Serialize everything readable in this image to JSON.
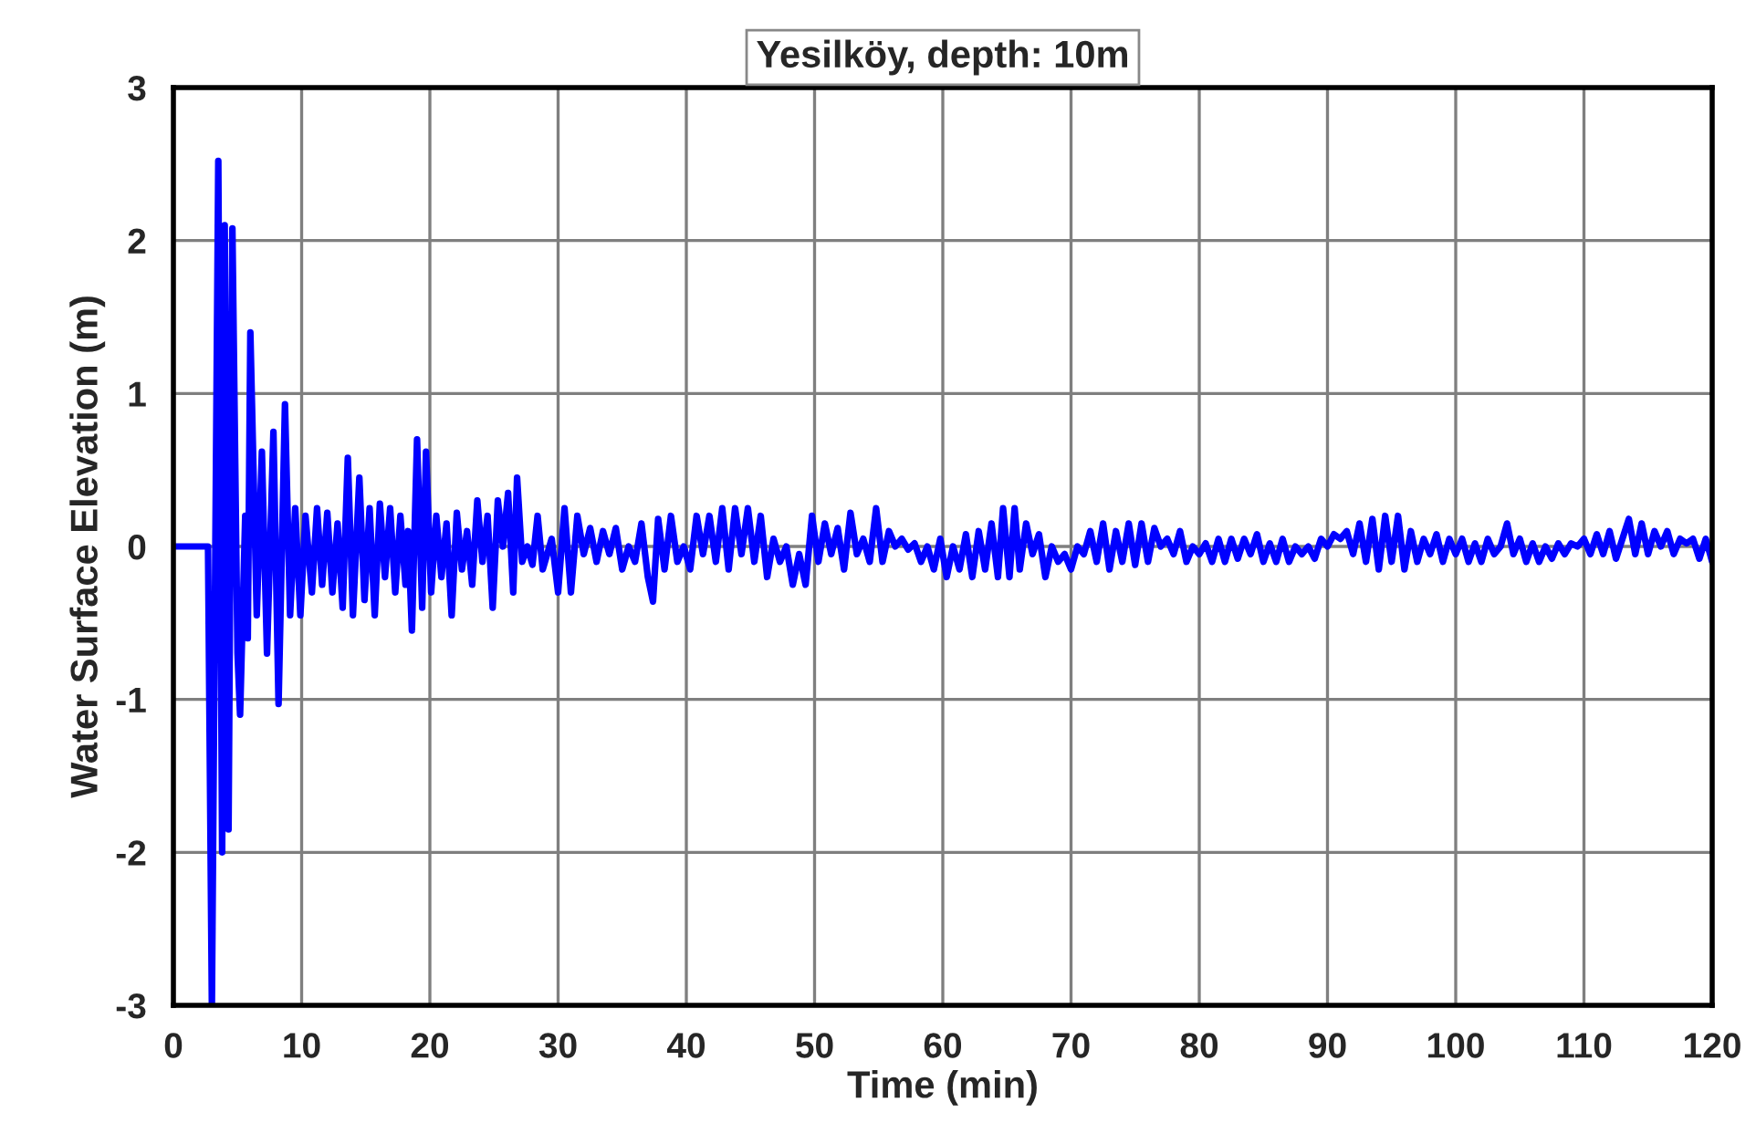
{
  "chart_data": {
    "type": "line",
    "title": "Yesilköy, depth: 10m",
    "xlabel": "Time (min)",
    "ylabel": "Water Surface Elevation (m)",
    "xlim": [
      0,
      120
    ],
    "xticks": [
      0,
      10,
      20,
      30,
      40,
      50,
      60,
      70,
      80,
      90,
      100,
      110,
      120
    ],
    "ylim": [
      -3,
      3
    ],
    "yticks": [
      -3,
      -2,
      -1,
      0,
      1,
      2,
      3
    ],
    "grid": true,
    "marker": "none",
    "line_style": "solid",
    "series": [
      {
        "color": "#0000ff",
        "x": [
          0,
          2.7,
          3.0,
          3.5,
          3.8,
          4.0,
          4.3,
          4.6,
          5.0,
          5.2,
          5.6,
          5.8,
          6.0,
          6.5,
          6.9,
          7.3,
          7.8,
          8.2,
          8.7,
          9.1,
          9.5,
          9.9,
          10.3,
          10.8,
          11.2,
          11.6,
          12.0,
          12.4,
          12.8,
          13.2,
          13.6,
          14.0,
          14.5,
          14.9,
          15.3,
          15.7,
          16.1,
          16.5,
          16.9,
          17.3,
          17.7,
          18.1,
          18.3,
          18.6,
          19.0,
          19.4,
          19.7,
          20.1,
          20.5,
          20.9,
          21.3,
          21.7,
          22.1,
          22.5,
          22.9,
          23.3,
          23.7,
          24.1,
          24.5,
          24.9,
          25.3,
          25.7,
          26.1,
          26.5,
          26.8,
          27.2,
          27.6,
          28.0,
          28.4,
          28.8,
          29.5,
          30.0,
          30.5,
          31.0,
          31.5,
          32.0,
          32.5,
          33.0,
          33.5,
          34.0,
          34.5,
          35.0,
          35.5,
          36.0,
          36.5,
          37.0,
          37.4,
          37.8,
          38.3,
          38.8,
          39.3,
          39.8,
          40.3,
          40.8,
          41.3,
          41.8,
          42.3,
          42.8,
          43.3,
          43.8,
          44.3,
          44.8,
          45.3,
          45.8,
          46.3,
          46.8,
          47.3,
          47.8,
          48.3,
          48.8,
          49.3,
          49.8,
          50.3,
          50.8,
          51.3,
          51.8,
          52.3,
          52.8,
          53.3,
          53.8,
          54.3,
          54.8,
          55.3,
          55.8,
          56.3,
          56.8,
          57.3,
          57.8,
          58.3,
          58.8,
          59.3,
          59.8,
          60.3,
          60.8,
          61.3,
          61.8,
          62.3,
          62.8,
          63.3,
          63.8,
          64.3,
          64.7,
          65.2,
          65.6,
          66.0,
          66.5,
          67.0,
          67.5,
          68.0,
          68.5,
          69.0,
          69.5,
          70.0,
          70.5,
          71.0,
          71.5,
          72.0,
          72.5,
          73.0,
          73.5,
          74.0,
          74.5,
          75.0,
          75.5,
          76.0,
          76.5,
          77.0,
          77.5,
          78.0,
          78.5,
          79.0,
          79.5,
          80.0,
          80.5,
          81.0,
          81.5,
          82.0,
          82.5,
          83.0,
          83.5,
          84.0,
          84.5,
          85.0,
          85.5,
          86.0,
          86.5,
          87.0,
          87.5,
          88.0,
          88.5,
          89.0,
          89.5,
          90.0,
          90.5,
          91.0,
          91.5,
          92.0,
          92.5,
          93.0,
          93.5,
          94.0,
          94.5,
          95.0,
          95.5,
          96.0,
          96.5,
          97.0,
          97.5,
          98.0,
          98.5,
          99.0,
          99.5,
          100.0,
          100.5,
          101.0,
          101.5,
          102.0,
          102.5,
          103.0,
          103.5,
          104.0,
          104.5,
          105.0,
          105.5,
          106.0,
          106.5,
          107.0,
          107.5,
          108.0,
          108.5,
          109.0,
          109.5,
          110.0,
          110.5,
          111.0,
          111.5,
          112.0,
          112.5,
          113.0,
          113.5,
          114.0,
          114.5,
          115.0,
          115.5,
          116.0,
          116.5,
          117.0,
          117.5,
          118.0,
          118.5,
          119.0,
          119.5,
          120.0
        ],
        "values": [
          0,
          0,
          -3.0,
          2.52,
          -2.0,
          2.1,
          -1.85,
          2.08,
          -0.7,
          -1.1,
          0.2,
          -0.6,
          1.4,
          -0.45,
          0.62,
          -0.7,
          0.75,
          -1.03,
          0.93,
          -0.45,
          0.25,
          -0.45,
          0.2,
          -0.3,
          0.25,
          -0.25,
          0.22,
          -0.3,
          0.15,
          -0.4,
          0.58,
          -0.45,
          0.45,
          -0.35,
          0.25,
          -0.45,
          0.28,
          -0.2,
          0.25,
          -0.3,
          0.2,
          -0.25,
          0.1,
          -0.55,
          0.7,
          -0.4,
          0.62,
          -0.3,
          0.2,
          -0.2,
          0.15,
          -0.45,
          0.22,
          -0.15,
          0.1,
          -0.25,
          0.3,
          -0.1,
          0.2,
          -0.4,
          0.3,
          0.0,
          0.35,
          -0.3,
          0.45,
          -0.1,
          0.0,
          -0.12,
          0.2,
          -0.15,
          0.05,
          -0.3,
          0.25,
          -0.3,
          0.2,
          -0.05,
          0.12,
          -0.1,
          0.1,
          -0.05,
          0.12,
          -0.15,
          0.0,
          -0.1,
          0.15,
          -0.2,
          -0.36,
          0.18,
          -0.15,
          0.2,
          -0.1,
          0.0,
          -0.15,
          0.2,
          -0.05,
          0.2,
          -0.1,
          0.25,
          -0.15,
          0.25,
          -0.05,
          0.25,
          -0.1,
          0.2,
          -0.2,
          0.05,
          -0.1,
          0.0,
          -0.25,
          -0.05,
          -0.25,
          0.2,
          -0.1,
          0.15,
          -0.05,
          0.12,
          -0.15,
          0.22,
          -0.05,
          0.05,
          -0.1,
          0.25,
          -0.1,
          0.1,
          0.0,
          0.05,
          -0.02,
          0.02,
          -0.1,
          0.0,
          -0.15,
          0.05,
          -0.2,
          0.0,
          -0.15,
          0.08,
          -0.2,
          0.1,
          -0.15,
          0.15,
          -0.2,
          0.25,
          -0.2,
          0.25,
          -0.15,
          0.15,
          -0.05,
          0.08,
          -0.2,
          0.0,
          -0.1,
          -0.05,
          -0.15,
          0.0,
          -0.05,
          0.1,
          -0.1,
          0.15,
          -0.15,
          0.1,
          -0.1,
          0.15,
          -0.12,
          0.15,
          -0.1,
          0.12,
          0.0,
          0.05,
          -0.05,
          0.1,
          -0.1,
          0.0,
          -0.05,
          0.02,
          -0.1,
          0.05,
          -0.1,
          0.05,
          -0.08,
          0.05,
          -0.05,
          0.08,
          -0.1,
          0.02,
          -0.1,
          0.05,
          -0.1,
          0.0,
          -0.05,
          0.0,
          -0.08,
          0.05,
          0.0,
          0.08,
          0.05,
          0.1,
          -0.05,
          0.15,
          -0.1,
          0.18,
          -0.15,
          0.2,
          -0.1,
          0.2,
          -0.15,
          0.1,
          -0.1,
          0.05,
          -0.05,
          0.08,
          -0.1,
          0.05,
          -0.05,
          0.05,
          -0.1,
          0.02,
          -0.1,
          0.05,
          -0.05,
          0.0,
          0.15,
          -0.05,
          0.05,
          -0.1,
          0.02,
          -0.1,
          0.0,
          -0.08,
          0.02,
          -0.05,
          0.02,
          0.0,
          0.05,
          -0.05,
          0.08,
          -0.05,
          0.1,
          -0.08,
          0.05,
          0.18,
          -0.05,
          0.15,
          -0.05,
          0.1,
          0.0,
          0.1,
          -0.05,
          0.05,
          0.02,
          0.05,
          -0.08,
          0.05,
          -0.1
        ]
      }
    ]
  }
}
